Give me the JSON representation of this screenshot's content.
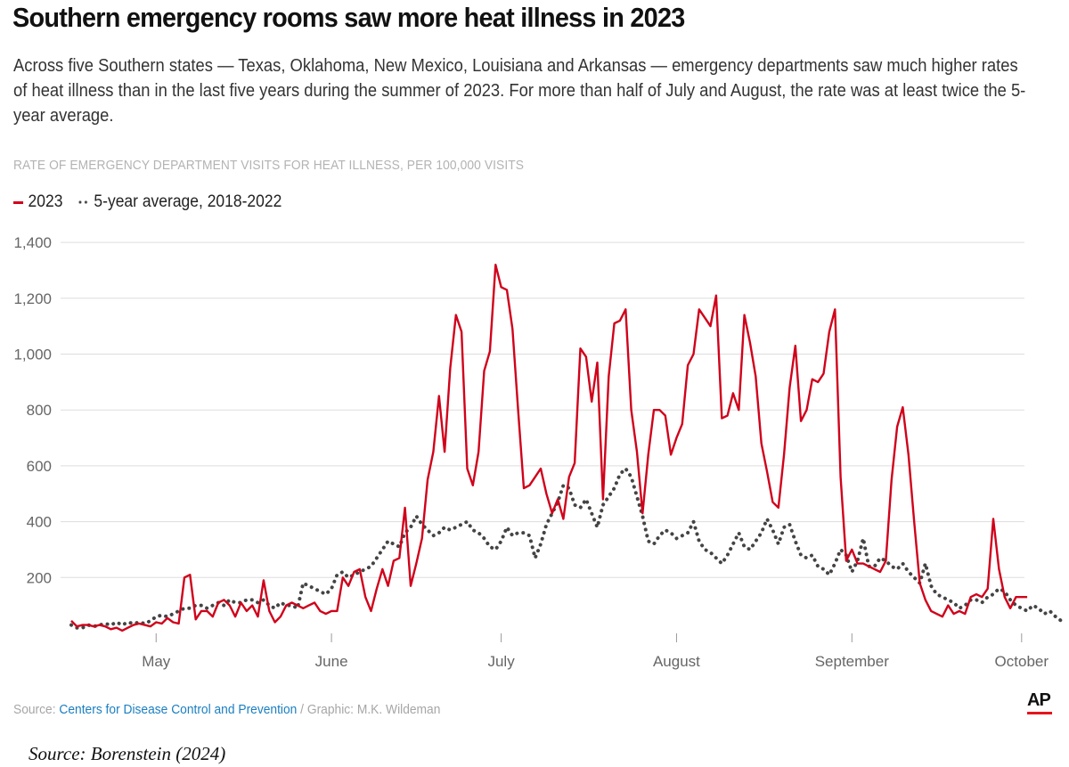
{
  "header": {
    "title": "Southern emergency rooms saw more heat illness in 2023",
    "subtitle": "Across five Southern states — Texas, Oklahoma, New Mexico, Louisiana and Arkansas — emergency departments saw much higher rates of heat illness than in the last five years during the summer of 2023. For more than half of July and August, the rate was at least twice the 5-year average."
  },
  "footer": {
    "source_label": "Source: ",
    "source_link": "Centers for Disease Control and Prevention",
    "graphic_credit": " / Graphic: M.K. Wildeman",
    "logo_text": "AP",
    "citation": "Source: Borenstein (2024)"
  },
  "colors": {
    "series_2023": "#d0021b",
    "series_avg": "#444444",
    "gridline": "#dddddd",
    "link": "#1a7fc1",
    "ap_red": "#e5141d"
  },
  "chart_data": {
    "type": "line",
    "title": "RATE OF EMERGENCY DEPARTMENT VISITS FOR HEAT ILLNESS, PER 100,000 VISITS",
    "xlabel": "",
    "ylabel": "Rate per 100,000 visits",
    "x_start": "2023-04-16",
    "x_end": "2023-09-30",
    "x_ticks": [
      "May",
      "June",
      "July",
      "August",
      "September",
      "October"
    ],
    "x_tick_day_index": [
      15,
      46,
      76,
      107,
      138,
      168
    ],
    "y_ticks": [
      200,
      400,
      600,
      800,
      1000,
      1200,
      1400
    ],
    "y_tick_labels": [
      "200",
      "400",
      "600",
      "800",
      "1,000",
      "1,200",
      "1,400"
    ],
    "ylim": [
      0,
      1400
    ],
    "grid": true,
    "legend_position": "top-left",
    "series": [
      {
        "name": "2023",
        "style": "solid",
        "values": [
          45,
          25,
          30,
          30,
          25,
          30,
          25,
          15,
          20,
          10,
          20,
          30,
          35,
          30,
          25,
          40,
          35,
          55,
          40,
          35,
          200,
          210,
          50,
          80,
          80,
          60,
          110,
          120,
          100,
          60,
          110,
          80,
          100,
          60,
          190,
          80,
          40,
          60,
          100,
          110,
          100,
          90,
          100,
          110,
          80,
          70,
          80,
          80,
          200,
          170,
          220,
          230,
          130,
          80,
          160,
          230,
          170,
          260,
          270,
          450,
          170,
          250,
          340,
          550,
          650,
          850,
          650,
          950,
          1140,
          1080,
          590,
          530,
          650,
          940,
          1010,
          1320,
          1240,
          1230,
          1090,
          800,
          520,
          530,
          560,
          590,
          500,
          430,
          480,
          410,
          560,
          610,
          1020,
          990,
          830,
          970,
          480,
          920,
          1110,
          1120,
          1160,
          800,
          650,
          430,
          640,
          800,
          800,
          780,
          640,
          700,
          750,
          960,
          1000,
          1160,
          1130,
          1100,
          1210,
          770,
          780,
          860,
          800,
          1140,
          1040,
          920,
          680,
          580,
          470,
          450,
          640,
          880,
          1030,
          760,
          800,
          910,
          900,
          930,
          1080,
          1160,
          560,
          260,
          300,
          250,
          250,
          240,
          230,
          220,
          260,
          550,
          740,
          810,
          640,
          400,
          180,
          120,
          80,
          70,
          60,
          100,
          70,
          80,
          70,
          130,
          140,
          130,
          160,
          410,
          230,
          130,
          90,
          130,
          130,
          130
        ]
      },
      {
        "name": "5-year average, 2018-2022",
        "style": "dotted",
        "values": [
          30,
          20,
          20,
          30,
          25,
          30,
          35,
          30,
          40,
          30,
          40,
          35,
          40,
          35,
          45,
          60,
          65,
          60,
          70,
          80,
          90,
          90,
          100,
          100,
          90,
          100,
          110,
          100,
          120,
          110,
          110,
          120,
          120,
          110,
          120,
          100,
          90,
          110,
          100,
          100,
          90,
          180,
          170,
          160,
          150,
          140,
          160,
          210,
          220,
          200,
          210,
          220,
          230,
          240,
          270,
          300,
          330,
          320,
          310,
          360,
          380,
          420,
          390,
          370,
          350,
          360,
          380,
          370,
          380,
          390,
          400,
          370,
          360,
          340,
          310,
          300,
          330,
          380,
          350,
          360,
          360,
          350,
          270,
          320,
          390,
          430,
          470,
          530,
          520,
          460,
          450,
          480,
          430,
          380,
          460,
          490,
          520,
          570,
          590,
          560,
          490,
          420,
          330,
          320,
          350,
          370,
          360,
          340,
          350,
          360,
          400,
          330,
          300,
          290,
          270,
          250,
          280,
          320,
          360,
          310,
          300,
          330,
          360,
          410,
          370,
          320,
          380,
          390,
          330,
          280,
          270,
          280,
          240,
          230,
          210,
          250,
          300,
          280,
          220,
          260,
          340,
          240,
          240,
          270,
          260,
          240,
          230,
          250,
          220,
          200,
          180,
          250,
          170,
          140,
          130,
          120,
          110,
          90,
          100,
          120,
          120,
          110,
          130,
          140,
          160,
          150,
          120,
          100,
          90,
          80,
          100,
          90,
          70,
          80,
          60,
          45
        ]
      }
    ]
  },
  "legend": {
    "item_2023": "2023",
    "item_avg": "5-year average, 2018-2022"
  }
}
